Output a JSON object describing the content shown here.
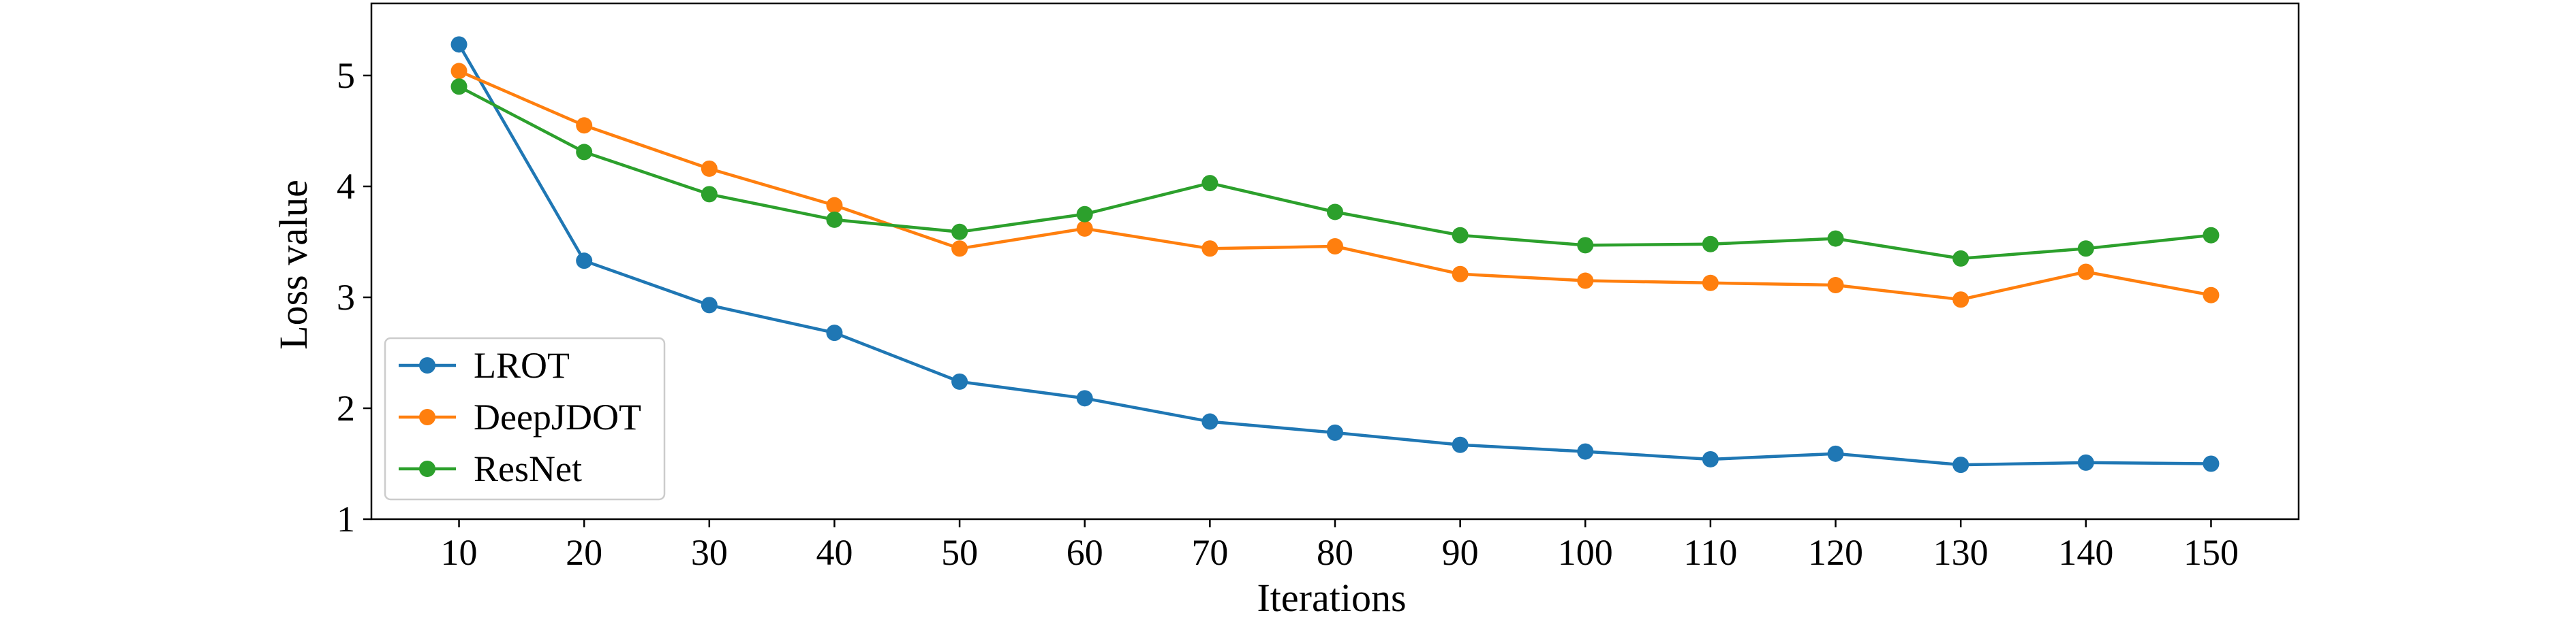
{
  "chart_data": {
    "type": "line",
    "title": "",
    "xlabel": "Iterations",
    "ylabel": "Loss value",
    "x": [
      10,
      20,
      30,
      40,
      50,
      60,
      70,
      80,
      90,
      100,
      110,
      120,
      130,
      140,
      150
    ],
    "x_ticks": [
      "10",
      "20",
      "30",
      "40",
      "50",
      "60",
      "70",
      "80",
      "90",
      "100",
      "110",
      "120",
      "130",
      "140",
      "150"
    ],
    "y_ticks": [
      "1",
      "2",
      "3",
      "4",
      "5"
    ],
    "xlim": [
      3,
      157
    ],
    "ylim": [
      1,
      5.65
    ],
    "grid": false,
    "legend_position": "lower-left",
    "series": [
      {
        "name": "LROT",
        "color": "#1f77b4",
        "values": [
          5.28,
          3.33,
          2.93,
          2.68,
          2.24,
          2.09,
          1.88,
          1.78,
          1.67,
          1.61,
          1.54,
          1.59,
          1.49,
          1.51,
          1.5
        ]
      },
      {
        "name": "DeepJDOT",
        "color": "#ff7f0e",
        "values": [
          5.04,
          4.55,
          4.16,
          3.83,
          3.44,
          3.62,
          3.44,
          3.46,
          3.21,
          3.15,
          3.13,
          3.11,
          2.98,
          3.23,
          3.02
        ]
      },
      {
        "name": "ResNet",
        "color": "#2ca02c",
        "values": [
          4.9,
          4.31,
          3.93,
          3.7,
          3.59,
          3.75,
          4.03,
          3.77,
          3.56,
          3.47,
          3.48,
          3.53,
          3.35,
          3.44,
          3.56
        ]
      }
    ]
  }
}
